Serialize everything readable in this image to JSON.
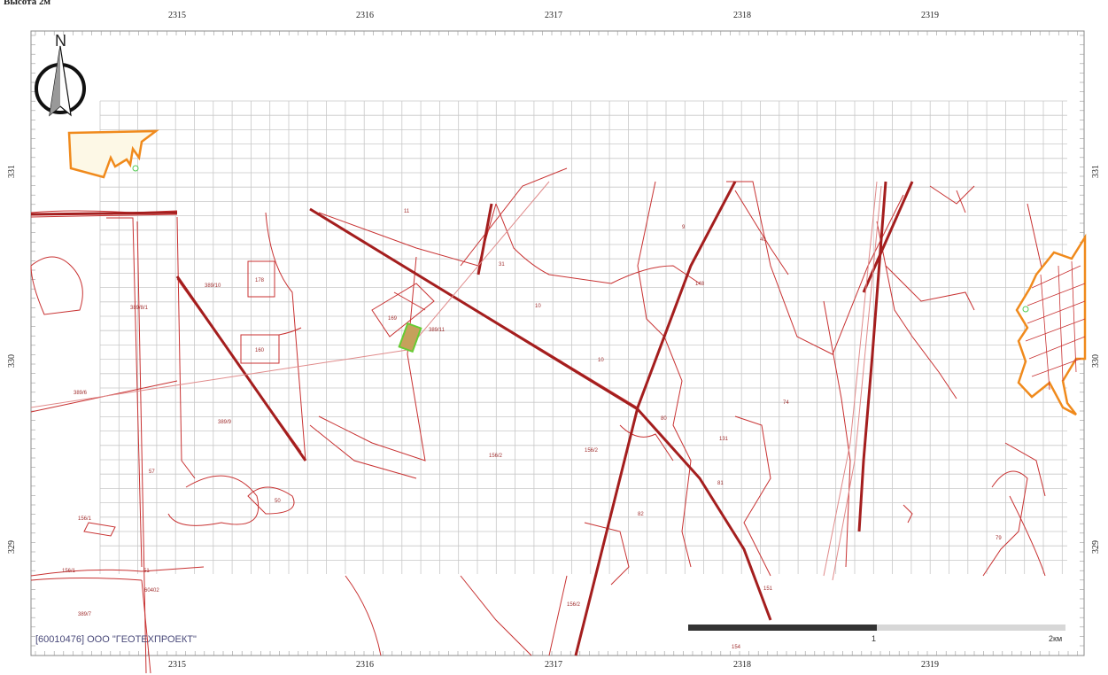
{
  "header": {
    "title": "Высота 2м"
  },
  "axis": {
    "top_labels": [
      "2315",
      "2316",
      "2317",
      "2318",
      "2319"
    ],
    "bottom_labels": [
      "2315",
      "2316",
      "2317",
      "2318",
      "2319"
    ],
    "left_labels": [
      "331",
      "330",
      "329"
    ],
    "right_labels": [
      "331",
      "330",
      "329"
    ]
  },
  "north": {
    "letter": "N"
  },
  "credit": "[60010476] ООО \"ГЕОТЕХПРОЕКТ\"",
  "scale": {
    "mid_label": "1",
    "end_label": "2км"
  },
  "parcel_labels": [
    "11",
    "31",
    "389/10",
    "178",
    "169",
    "389/11",
    "10",
    "389/8/1",
    "160",
    "389/6",
    "389/9",
    "57",
    "50",
    "156/1",
    "156/1",
    "51",
    "60402",
    "389/7",
    "156/2",
    "156/2",
    "10",
    "80",
    "74",
    "131",
    "81",
    "82",
    "151",
    "156/2",
    "9",
    "148",
    "40",
    "154",
    "79"
  ]
}
